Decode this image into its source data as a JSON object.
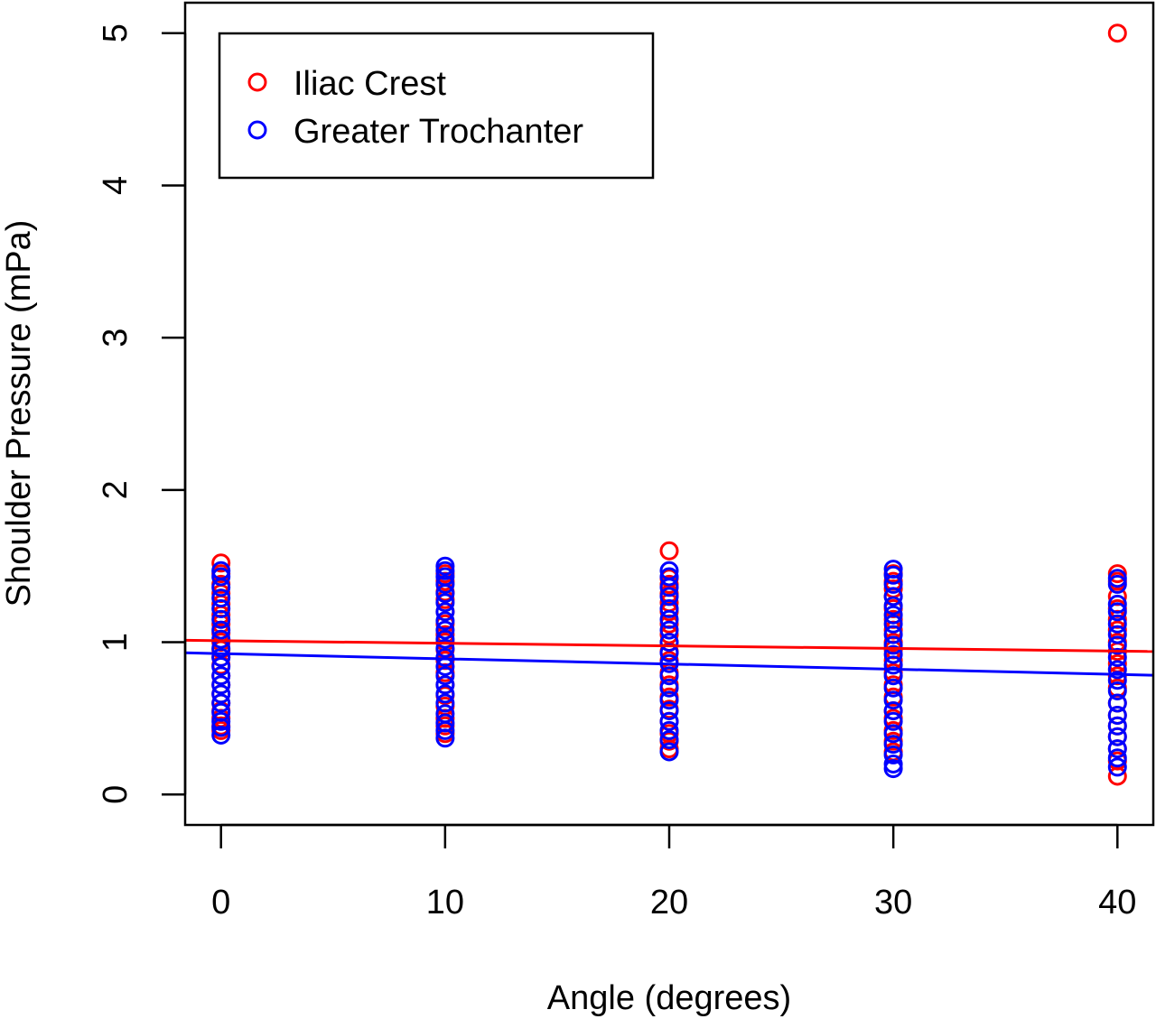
{
  "chart_data": {
    "type": "scatter",
    "title": "",
    "xlabel": "Angle (degrees)",
    "ylabel": "Shoulder Pressure (mPa)",
    "xlim": [
      -1.6,
      41.6
    ],
    "ylim": [
      -0.2,
      5.2
    ],
    "xticks": [
      0,
      10,
      20,
      30,
      40
    ],
    "yticks": [
      0,
      1,
      2,
      3,
      4,
      5
    ],
    "grid": false,
    "legend_position": "top-left",
    "series": [
      {
        "name": "Iliac Crest",
        "color": "#ff0000",
        "points": [
          [
            0,
            1.52
          ],
          [
            0,
            1.45
          ],
          [
            0,
            1.38
          ],
          [
            0,
            1.32
          ],
          [
            0,
            1.25
          ],
          [
            0,
            1.18
          ],
          [
            0,
            1.12
          ],
          [
            0,
            1.06
          ],
          [
            0,
            1.0
          ],
          [
            0,
            0.95
          ],
          [
            0,
            0.9
          ],
          [
            0,
            0.85
          ],
          [
            0,
            0.78
          ],
          [
            0,
            0.72
          ],
          [
            0,
            0.66
          ],
          [
            0,
            0.6
          ],
          [
            0,
            0.55
          ],
          [
            0,
            0.5
          ],
          [
            0,
            0.45
          ],
          [
            0,
            0.42
          ],
          [
            10,
            1.45
          ],
          [
            10,
            1.4
          ],
          [
            10,
            1.33
          ],
          [
            10,
            1.28
          ],
          [
            10,
            1.2
          ],
          [
            10,
            1.12
          ],
          [
            10,
            1.05
          ],
          [
            10,
            1.0
          ],
          [
            10,
            0.95
          ],
          [
            10,
            0.88
          ],
          [
            10,
            0.8
          ],
          [
            10,
            0.72
          ],
          [
            10,
            0.65
          ],
          [
            10,
            0.58
          ],
          [
            10,
            0.5
          ],
          [
            10,
            0.45
          ],
          [
            10,
            0.4
          ],
          [
            20,
            1.6
          ],
          [
            20,
            1.42
          ],
          [
            20,
            1.38
          ],
          [
            20,
            1.32
          ],
          [
            20,
            1.26
          ],
          [
            20,
            1.2
          ],
          [
            20,
            1.12
          ],
          [
            20,
            1.05
          ],
          [
            20,
            1.0
          ],
          [
            20,
            0.94
          ],
          [
            20,
            0.88
          ],
          [
            20,
            0.8
          ],
          [
            20,
            0.72
          ],
          [
            20,
            0.64
          ],
          [
            20,
            0.56
          ],
          [
            20,
            0.48
          ],
          [
            20,
            0.4
          ],
          [
            20,
            0.35
          ],
          [
            20,
            0.3
          ],
          [
            30,
            1.45
          ],
          [
            30,
            1.4
          ],
          [
            30,
            1.35
          ],
          [
            30,
            1.3
          ],
          [
            30,
            1.22
          ],
          [
            30,
            1.15
          ],
          [
            30,
            1.08
          ],
          [
            30,
            1.0
          ],
          [
            30,
            0.95
          ],
          [
            30,
            0.88
          ],
          [
            30,
            0.8
          ],
          [
            30,
            0.72
          ],
          [
            30,
            0.64
          ],
          [
            30,
            0.55
          ],
          [
            30,
            0.5
          ],
          [
            30,
            0.42
          ],
          [
            30,
            0.35
          ],
          [
            30,
            0.28
          ],
          [
            40,
            5.0
          ],
          [
            40,
            1.45
          ],
          [
            40,
            1.4
          ],
          [
            40,
            1.3
          ],
          [
            40,
            1.22
          ],
          [
            40,
            1.15
          ],
          [
            40,
            1.08
          ],
          [
            40,
            1.0
          ],
          [
            40,
            0.94
          ],
          [
            40,
            0.86
          ],
          [
            40,
            0.78
          ],
          [
            40,
            0.7
          ],
          [
            40,
            0.6
          ],
          [
            40,
            0.52
          ],
          [
            40,
            0.45
          ],
          [
            40,
            0.38
          ],
          [
            40,
            0.3
          ],
          [
            40,
            0.22
          ],
          [
            40,
            0.12
          ]
        ],
        "fit": [
          1.01,
          -0.0017
        ]
      },
      {
        "name": "Greater Trochanter",
        "color": "#0000ff",
        "points": [
          [
            0,
            1.47
          ],
          [
            0,
            1.43
          ],
          [
            0,
            1.36
          ],
          [
            0,
            1.29
          ],
          [
            0,
            1.22
          ],
          [
            0,
            1.15
          ],
          [
            0,
            1.08
          ],
          [
            0,
            1.02
          ],
          [
            0,
            0.96
          ],
          [
            0,
            0.9
          ],
          [
            0,
            0.84
          ],
          [
            0,
            0.78
          ],
          [
            0,
            0.72
          ],
          [
            0,
            0.66
          ],
          [
            0,
            0.6
          ],
          [
            0,
            0.54
          ],
          [
            0,
            0.48
          ],
          [
            0,
            0.44
          ],
          [
            0,
            0.39
          ],
          [
            10,
            1.5
          ],
          [
            10,
            1.47
          ],
          [
            10,
            1.43
          ],
          [
            10,
            1.38
          ],
          [
            10,
            1.32
          ],
          [
            10,
            1.26
          ],
          [
            10,
            1.2
          ],
          [
            10,
            1.14
          ],
          [
            10,
            1.08
          ],
          [
            10,
            1.02
          ],
          [
            10,
            0.96
          ],
          [
            10,
            0.9
          ],
          [
            10,
            0.84
          ],
          [
            10,
            0.78
          ],
          [
            10,
            0.72
          ],
          [
            10,
            0.66
          ],
          [
            10,
            0.6
          ],
          [
            10,
            0.53
          ],
          [
            10,
            0.47
          ],
          [
            10,
            0.42
          ],
          [
            10,
            0.37
          ],
          [
            20,
            1.47
          ],
          [
            20,
            1.43
          ],
          [
            20,
            1.36
          ],
          [
            20,
            1.3
          ],
          [
            20,
            1.22
          ],
          [
            20,
            1.15
          ],
          [
            20,
            1.08
          ],
          [
            20,
            1.0
          ],
          [
            20,
            0.93
          ],
          [
            20,
            0.86
          ],
          [
            20,
            0.78
          ],
          [
            20,
            0.7
          ],
          [
            20,
            0.62
          ],
          [
            20,
            0.55
          ],
          [
            20,
            0.48
          ],
          [
            20,
            0.42
          ],
          [
            20,
            0.36
          ],
          [
            20,
            0.28
          ],
          [
            30,
            1.48
          ],
          [
            30,
            1.44
          ],
          [
            30,
            1.38
          ],
          [
            30,
            1.3
          ],
          [
            30,
            1.24
          ],
          [
            30,
            1.18
          ],
          [
            30,
            1.12
          ],
          [
            30,
            1.05
          ],
          [
            30,
            0.98
          ],
          [
            30,
            0.92
          ],
          [
            30,
            0.85
          ],
          [
            30,
            0.78
          ],
          [
            30,
            0.7
          ],
          [
            30,
            0.62
          ],
          [
            30,
            0.55
          ],
          [
            30,
            0.48
          ],
          [
            30,
            0.4
          ],
          [
            30,
            0.33
          ],
          [
            30,
            0.26
          ],
          [
            30,
            0.2
          ],
          [
            30,
            0.17
          ],
          [
            40,
            1.42
          ],
          [
            40,
            1.38
          ],
          [
            40,
            1.25
          ],
          [
            40,
            1.2
          ],
          [
            40,
            1.12
          ],
          [
            40,
            1.05
          ],
          [
            40,
            0.98
          ],
          [
            40,
            0.9
          ],
          [
            40,
            0.82
          ],
          [
            40,
            0.75
          ],
          [
            40,
            0.68
          ],
          [
            40,
            0.6
          ],
          [
            40,
            0.52
          ],
          [
            40,
            0.45
          ],
          [
            40,
            0.38
          ],
          [
            40,
            0.3
          ],
          [
            40,
            0.24
          ],
          [
            40,
            0.18
          ]
        ],
        "fit": [
          0.925,
          -0.0034
        ]
      }
    ]
  }
}
